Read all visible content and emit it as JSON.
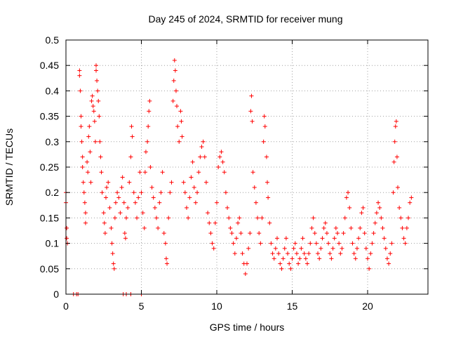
{
  "chart_data": {
    "type": "scatter",
    "title": "Day 245 of 2024, SRMTID for receiver mung",
    "xlabel": "GPS time / hours",
    "ylabel": "SRMTID / TECUs",
    "xlim": [
      0,
      24
    ],
    "ylim": [
      0,
      0.5
    ],
    "x_ticks": [
      0,
      5,
      10,
      15,
      20
    ],
    "x_tick_labels": [
      "0",
      "5",
      "10",
      "15",
      "20"
    ],
    "y_ticks": [
      0,
      0.05,
      0.1,
      0.15,
      0.2,
      0.25,
      0.3,
      0.35,
      0.4,
      0.45,
      0.5
    ],
    "y_tick_labels": [
      "0",
      "0.05",
      "0.1",
      "0.15",
      "0.2",
      "0.25",
      "0.3",
      "0.35",
      "0.4",
      "0.45",
      "0.5"
    ],
    "grid": true,
    "marker": "+",
    "series": [
      {
        "name": "SRMTID",
        "color": "#ff0000",
        "points": [
          [
            0.0,
            0.2
          ],
          [
            0.0,
            0.18
          ],
          [
            0.05,
            0.13
          ],
          [
            0.05,
            0.11
          ],
          [
            0.1,
            0.1
          ],
          [
            0.5,
            0.0
          ],
          [
            0.7,
            0.0
          ],
          [
            0.8,
            0.0
          ],
          [
            3.8,
            0.0
          ],
          [
            4.0,
            0.0
          ],
          [
            4.3,
            0.0
          ],
          [
            5.0,
            0.0
          ],
          [
            0.9,
            0.44
          ],
          [
            0.9,
            0.43
          ],
          [
            0.95,
            0.4
          ],
          [
            1.0,
            0.35
          ],
          [
            1.0,
            0.33
          ],
          [
            1.05,
            0.3
          ],
          [
            1.1,
            0.27
          ],
          [
            1.1,
            0.25
          ],
          [
            1.15,
            0.22
          ],
          [
            1.2,
            0.2
          ],
          [
            1.25,
            0.18
          ],
          [
            1.3,
            0.16
          ],
          [
            1.3,
            0.14
          ],
          [
            1.4,
            0.26
          ],
          [
            1.45,
            0.24
          ],
          [
            1.5,
            0.31
          ],
          [
            1.55,
            0.33
          ],
          [
            1.6,
            0.28
          ],
          [
            1.65,
            0.22
          ],
          [
            1.7,
            0.38
          ],
          [
            1.75,
            0.39
          ],
          [
            1.8,
            0.37
          ],
          [
            1.85,
            0.36
          ],
          [
            1.9,
            0.34
          ],
          [
            1.95,
            0.3
          ],
          [
            2.0,
            0.45
          ],
          [
            2.0,
            0.44
          ],
          [
            2.05,
            0.42
          ],
          [
            2.1,
            0.4
          ],
          [
            2.15,
            0.38
          ],
          [
            2.2,
            0.35
          ],
          [
            2.25,
            0.3
          ],
          [
            2.3,
            0.27
          ],
          [
            2.35,
            0.24
          ],
          [
            2.4,
            0.2
          ],
          [
            2.5,
            0.16
          ],
          [
            2.55,
            0.14
          ],
          [
            2.6,
            0.12
          ],
          [
            2.65,
            0.19
          ],
          [
            2.7,
            0.21
          ],
          [
            2.8,
            0.22
          ],
          [
            2.9,
            0.17
          ],
          [
            3.0,
            0.13
          ],
          [
            3.05,
            0.1
          ],
          [
            3.1,
            0.08
          ],
          [
            3.15,
            0.06
          ],
          [
            3.2,
            0.05
          ],
          [
            3.25,
            0.15
          ],
          [
            3.3,
            0.18
          ],
          [
            3.4,
            0.2
          ],
          [
            3.5,
            0.19
          ],
          [
            3.6,
            0.16
          ],
          [
            3.7,
            0.21
          ],
          [
            3.75,
            0.23
          ],
          [
            3.85,
            0.18
          ],
          [
            3.9,
            0.12
          ],
          [
            3.95,
            0.11
          ],
          [
            4.0,
            0.15
          ],
          [
            4.1,
            0.17
          ],
          [
            4.2,
            0.22
          ],
          [
            4.3,
            0.27
          ],
          [
            4.35,
            0.33
          ],
          [
            4.4,
            0.31
          ],
          [
            4.5,
            0.2
          ],
          [
            4.6,
            0.18
          ],
          [
            4.7,
            0.15
          ],
          [
            4.8,
            0.19
          ],
          [
            4.9,
            0.24
          ],
          [
            5.0,
            0.2
          ],
          [
            5.1,
            0.16
          ],
          [
            5.2,
            0.13
          ],
          [
            5.25,
            0.24
          ],
          [
            5.3,
            0.28
          ],
          [
            5.4,
            0.3
          ],
          [
            5.45,
            0.33
          ],
          [
            5.5,
            0.36
          ],
          [
            5.55,
            0.38
          ],
          [
            5.6,
            0.25
          ],
          [
            5.7,
            0.21
          ],
          [
            5.8,
            0.19
          ],
          [
            5.9,
            0.17
          ],
          [
            6.0,
            0.15
          ],
          [
            6.1,
            0.13
          ],
          [
            6.2,
            0.18
          ],
          [
            6.3,
            0.2
          ],
          [
            6.4,
            0.24
          ],
          [
            6.5,
            0.12
          ],
          [
            6.6,
            0.1
          ],
          [
            6.65,
            0.07
          ],
          [
            6.7,
            0.06
          ],
          [
            6.8,
            0.15
          ],
          [
            6.9,
            0.2
          ],
          [
            7.0,
            0.22
          ],
          [
            7.1,
            0.38
          ],
          [
            7.15,
            0.42
          ],
          [
            7.2,
            0.46
          ],
          [
            7.25,
            0.44
          ],
          [
            7.3,
            0.4
          ],
          [
            7.35,
            0.37
          ],
          [
            7.4,
            0.33
          ],
          [
            7.5,
            0.3
          ],
          [
            7.6,
            0.36
          ],
          [
            7.65,
            0.34
          ],
          [
            7.7,
            0.31
          ],
          [
            7.8,
            0.22
          ],
          [
            7.9,
            0.2
          ],
          [
            8.0,
            0.17
          ],
          [
            8.1,
            0.15
          ],
          [
            8.2,
            0.19
          ],
          [
            8.3,
            0.23
          ],
          [
            8.4,
            0.26
          ],
          [
            8.5,
            0.21
          ],
          [
            8.6,
            0.18
          ],
          [
            8.7,
            0.2
          ],
          [
            8.8,
            0.24
          ],
          [
            8.9,
            0.27
          ],
          [
            9.0,
            0.29
          ],
          [
            9.1,
            0.3
          ],
          [
            9.2,
            0.27
          ],
          [
            9.3,
            0.22
          ],
          [
            9.4,
            0.16
          ],
          [
            9.5,
            0.14
          ],
          [
            9.6,
            0.12
          ],
          [
            9.7,
            0.1
          ],
          [
            9.8,
            0.09
          ],
          [
            9.9,
            0.14
          ],
          [
            10.0,
            0.18
          ],
          [
            10.1,
            0.25
          ],
          [
            10.2,
            0.27
          ],
          [
            10.3,
            0.28
          ],
          [
            10.4,
            0.26
          ],
          [
            10.5,
            0.24
          ],
          [
            10.6,
            0.2
          ],
          [
            10.7,
            0.17
          ],
          [
            10.8,
            0.15
          ],
          [
            10.9,
            0.13
          ],
          [
            11.0,
            0.12
          ],
          [
            11.1,
            0.1
          ],
          [
            11.2,
            0.08
          ],
          [
            11.3,
            0.11
          ],
          [
            11.4,
            0.14
          ],
          [
            11.5,
            0.15
          ],
          [
            11.6,
            0.12
          ],
          [
            11.7,
            0.08
          ],
          [
            11.8,
            0.06
          ],
          [
            11.9,
            0.04
          ],
          [
            12.0,
            0.06
          ],
          [
            12.1,
            0.09
          ],
          [
            12.2,
            0.12
          ],
          [
            12.25,
            0.36
          ],
          [
            12.3,
            0.39
          ],
          [
            12.35,
            0.34
          ],
          [
            12.4,
            0.24
          ],
          [
            12.5,
            0.21
          ],
          [
            12.6,
            0.18
          ],
          [
            12.7,
            0.15
          ],
          [
            12.8,
            0.12
          ],
          [
            12.9,
            0.1
          ],
          [
            13.0,
            0.15
          ],
          [
            13.1,
            0.3
          ],
          [
            13.15,
            0.35
          ],
          [
            13.2,
            0.33
          ],
          [
            13.3,
            0.27
          ],
          [
            13.35,
            0.22
          ],
          [
            13.4,
            0.19
          ],
          [
            13.5,
            0.14
          ],
          [
            13.6,
            0.1
          ],
          [
            13.7,
            0.08
          ],
          [
            13.8,
            0.07
          ],
          [
            13.9,
            0.09
          ],
          [
            14.0,
            0.11
          ],
          [
            14.1,
            0.08
          ],
          [
            14.2,
            0.06
          ],
          [
            14.3,
            0.05
          ],
          [
            14.4,
            0.07
          ],
          [
            14.5,
            0.09
          ],
          [
            14.6,
            0.11
          ],
          [
            14.7,
            0.08
          ],
          [
            14.8,
            0.06
          ],
          [
            14.9,
            0.05
          ],
          [
            15.0,
            0.07
          ],
          [
            15.1,
            0.09
          ],
          [
            15.2,
            0.1
          ],
          [
            15.3,
            0.08
          ],
          [
            15.4,
            0.06
          ],
          [
            15.5,
            0.07
          ],
          [
            15.6,
            0.09
          ],
          [
            15.7,
            0.11
          ],
          [
            15.8,
            0.08
          ],
          [
            15.9,
            0.07
          ],
          [
            16.0,
            0.06
          ],
          [
            16.1,
            0.08
          ],
          [
            16.2,
            0.1
          ],
          [
            16.3,
            0.13
          ],
          [
            16.4,
            0.15
          ],
          [
            16.5,
            0.12
          ],
          [
            16.6,
            0.1
          ],
          [
            16.7,
            0.08
          ],
          [
            16.8,
            0.07
          ],
          [
            16.9,
            0.09
          ],
          [
            17.0,
            0.11
          ],
          [
            17.1,
            0.13
          ],
          [
            17.2,
            0.14
          ],
          [
            17.3,
            0.12
          ],
          [
            17.4,
            0.1
          ],
          [
            17.5,
            0.08
          ],
          [
            17.6,
            0.07
          ],
          [
            17.7,
            0.09
          ],
          [
            17.8,
            0.11
          ],
          [
            17.9,
            0.13
          ],
          [
            18.0,
            0.12
          ],
          [
            18.1,
            0.1
          ],
          [
            18.2,
            0.08
          ],
          [
            18.3,
            0.09
          ],
          [
            18.4,
            0.12
          ],
          [
            18.5,
            0.15
          ],
          [
            18.6,
            0.19
          ],
          [
            18.7,
            0.2
          ],
          [
            18.8,
            0.17
          ],
          [
            18.9,
            0.13
          ],
          [
            19.0,
            0.1
          ],
          [
            19.1,
            0.08
          ],
          [
            19.2,
            0.07
          ],
          [
            19.3,
            0.09
          ],
          [
            19.4,
            0.11
          ],
          [
            19.5,
            0.13
          ],
          [
            19.6,
            0.16
          ],
          [
            19.7,
            0.17
          ],
          [
            19.8,
            0.12
          ],
          [
            19.9,
            0.09
          ],
          [
            20.0,
            0.07
          ],
          [
            20.1,
            0.05
          ],
          [
            20.2,
            0.08
          ],
          [
            20.3,
            0.1
          ],
          [
            20.4,
            0.12
          ],
          [
            20.5,
            0.14
          ],
          [
            20.6,
            0.16
          ],
          [
            20.7,
            0.18
          ],
          [
            20.8,
            0.17
          ],
          [
            20.9,
            0.15
          ],
          [
            21.0,
            0.13
          ],
          [
            21.1,
            0.11
          ],
          [
            21.2,
            0.09
          ],
          [
            21.3,
            0.07
          ],
          [
            21.4,
            0.06
          ],
          [
            21.5,
            0.08
          ],
          [
            21.6,
            0.1
          ],
          [
            21.7,
            0.2
          ],
          [
            21.75,
            0.26
          ],
          [
            21.8,
            0.3
          ],
          [
            21.85,
            0.33
          ],
          [
            21.9,
            0.34
          ],
          [
            21.95,
            0.27
          ],
          [
            22.0,
            0.21
          ],
          [
            22.1,
            0.17
          ],
          [
            22.2,
            0.15
          ],
          [
            22.3,
            0.13
          ],
          [
            22.4,
            0.11
          ],
          [
            22.5,
            0.1
          ],
          [
            22.6,
            0.13
          ],
          [
            22.7,
            0.15
          ],
          [
            22.8,
            0.18
          ],
          [
            22.9,
            0.19
          ]
        ]
      }
    ]
  }
}
